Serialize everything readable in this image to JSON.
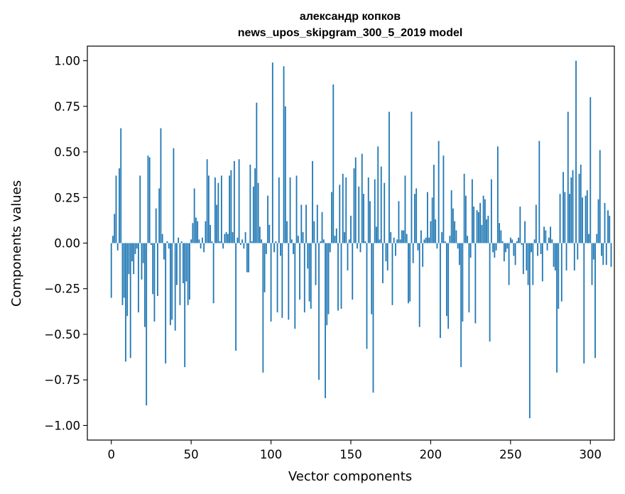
{
  "chart_data": {
    "type": "bar",
    "title": "александр копков",
    "subtitle": "news_upos_skipgram_300_5_2019 model",
    "xlabel": "Vector components",
    "ylabel": "Components values",
    "xlim": [
      -15,
      315
    ],
    "ylim": [
      -1.08,
      1.08
    ],
    "xticks": [
      0,
      50,
      100,
      150,
      200,
      250,
      300
    ],
    "yticks": [
      -1.0,
      -0.75,
      -0.5,
      -0.25,
      0.0,
      0.25,
      0.5,
      0.75,
      1.0
    ],
    "xtick_labels": [
      "0",
      "50",
      "100",
      "150",
      "200",
      "250",
      "300"
    ],
    "ytick_labels": [
      "−1.00",
      "−0.75",
      "−0.50",
      "−0.25",
      "0.00",
      "0.25",
      "0.50",
      "0.75",
      "1.00"
    ],
    "grid": false,
    "bar_color": "#1f77b4",
    "values": [
      -0.3,
      0.04,
      0.16,
      0.37,
      -0.04,
      0.41,
      0.63,
      -0.34,
      -0.3,
      -0.65,
      -0.4,
      -0.17,
      -0.63,
      -0.1,
      -0.17,
      -0.06,
      -0.03,
      -0.38,
      0.37,
      -0.2,
      -0.11,
      -0.46,
      -0.89,
      0.48,
      0.47,
      -0.01,
      -0.28,
      -0.43,
      0.19,
      -0.29,
      0.3,
      0.63,
      0.05,
      -0.09,
      -0.66,
      0.01,
      -0.03,
      -0.45,
      -0.42,
      0.52,
      -0.48,
      -0.23,
      0.03,
      -0.34,
      0.01,
      -0.22,
      -0.68,
      -0.21,
      -0.34,
      -0.31,
      0.02,
      0.11,
      0.3,
      0.14,
      0.12,
      0.02,
      -0.03,
      0.03,
      -0.05,
      0.12,
      0.46,
      0.37,
      0.1,
      0.01,
      -0.33,
      0.36,
      0.21,
      0.33,
      0.01,
      0.37,
      -0.03,
      0.05,
      0.06,
      0.05,
      0.37,
      0.4,
      0.06,
      0.45,
      -0.59,
      0.03,
      0.46,
      -0.01,
      0.02,
      -0.03,
      0.06,
      -0.16,
      -0.16,
      0.43,
      0.01,
      0.31,
      0.41,
      0.77,
      0.33,
      0.09,
      0.02,
      -0.71,
      -0.27,
      -0.06,
      0.26,
      0.1,
      -0.43,
      0.99,
      -0.05,
      0.01,
      -0.38,
      0.36,
      -0.07,
      -0.41,
      0.97,
      0.75,
      0.12,
      -0.42,
      0.36,
      0.02,
      -0.06,
      -0.47,
      0.37,
      0.04,
      -0.31,
      0.21,
      0.06,
      -0.38,
      0.21,
      -0.14,
      -0.32,
      -0.36,
      0.45,
      0.12,
      -0.23,
      0.21,
      -0.75,
      0.01,
      0.17,
      0.02,
      -0.85,
      -0.45,
      -0.39,
      -0.05,
      0.28,
      0.87,
      0.04,
      0.08,
      -0.37,
      0.32,
      -0.36,
      0.38,
      0.06,
      0.36,
      -0.15,
      0.02,
      0.15,
      -0.31,
      0.41,
      0.47,
      -0.03,
      0.31,
      -0.05,
      0.49,
      0.27,
      0.01,
      -0.58,
      0.36,
      0.23,
      -0.39,
      -0.82,
      0.35,
      0.09,
      0.53,
      0.02,
      0.42,
      -0.22,
      0.33,
      -0.1,
      -0.15,
      0.72,
      0.06,
      -0.34,
      0.03,
      -0.07,
      0.02,
      0.23,
      0.02,
      0.07,
      0.07,
      0.37,
      0.05,
      -0.33,
      -0.32,
      0.72,
      -0.11,
      0.27,
      0.3,
      -0.04,
      -0.46,
      0.07,
      -0.13,
      0.02,
      0.03,
      0.28,
      0.03,
      0.12,
      0.25,
      0.43,
      0.13,
      -0.03,
      0.56,
      -0.52,
      0.06,
      0.48,
      0.01,
      -0.4,
      -0.47,
      0.04,
      0.29,
      0.19,
      0.12,
      0.07,
      -0.03,
      -0.12,
      -0.68,
      -0.43,
      0.38,
      0.26,
      0.04,
      -0.38,
      -0.08,
      0.35,
      0.2,
      -0.44,
      0.18,
      0.17,
      0.22,
      0.1,
      0.26,
      0.24,
      0.13,
      0.15,
      -0.54,
      0.35,
      -0.05,
      -0.08,
      -0.04,
      0.53,
      0.11,
      0.07,
      0.01,
      -0.1,
      -0.05,
      -0.03,
      -0.23,
      0.03,
      0.02,
      -0.07,
      -0.12,
      0.01,
      0.03,
      0.2,
      -0.01,
      -0.17,
      0.12,
      -0.15,
      -0.23,
      -0.96,
      -0.05,
      -0.23,
      0.02,
      0.21,
      -0.07,
      0.56,
      -0.06,
      -0.21,
      0.09,
      0.07,
      -0.04,
      0.03,
      0.09,
      0.02,
      -0.13,
      -0.15,
      -0.71,
      -0.36,
      0.27,
      -0.32,
      0.39,
      0.28,
      -0.15,
      0.72,
      0.27,
      0.36,
      0.4,
      -0.15,
      1.0,
      -0.09,
      0.38,
      0.43,
      0.25,
      -0.66,
      0.26,
      0.29,
      0.05,
      0.8,
      -0.23,
      -0.09,
      -0.63,
      0.05,
      0.24,
      0.51,
      -0.07,
      -0.12,
      0.22,
      -0.12,
      0.18,
      0.15,
      -0.13
    ]
  }
}
